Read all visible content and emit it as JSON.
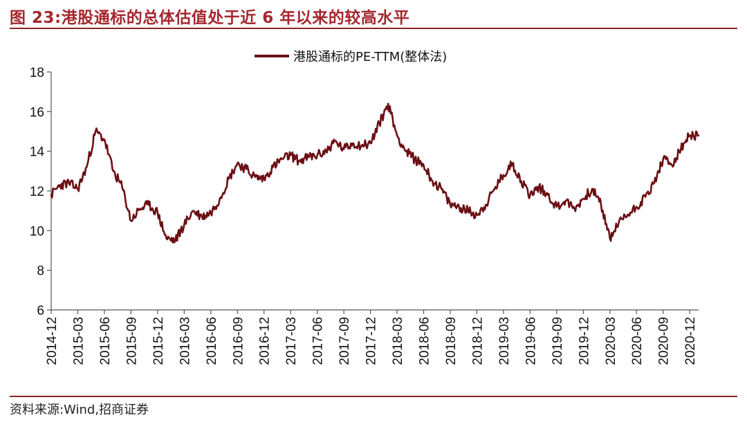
{
  "figure": {
    "title": "图 23:港股通标的总体估值处于近 6 年以来的较高水平",
    "source": "资料来源:Wind,招商证券"
  },
  "colors": {
    "accent": "#a5272e",
    "rule": "#8b2425",
    "series": "#6b0f14"
  },
  "chart_data": {
    "type": "line",
    "title": "",
    "xlabel": "",
    "ylabel": "",
    "ylim": [
      6,
      18
    ],
    "yticks": [
      6,
      8,
      10,
      12,
      14,
      16,
      18
    ],
    "grid": false,
    "legend_position": "top-center",
    "x_tick_labels": [
      "2014-12",
      "2015-03",
      "2015-06",
      "2015-09",
      "2015-12",
      "2016-03",
      "2016-06",
      "2016-09",
      "2016-12",
      "2017-03",
      "2017-06",
      "2017-09",
      "2017-12",
      "2018-03",
      "2018-06",
      "2018-09",
      "2018-12",
      "2019-03",
      "2019-06",
      "2019-09",
      "2019-12",
      "2020-03",
      "2020-06",
      "2020-09",
      "2020-12"
    ],
    "series": [
      {
        "name": "港股通标的PE-TTM(整体法)",
        "x": [
          "2014-12",
          "2015-01",
          "2015-02",
          "2015-03",
          "2015-04",
          "2015-05",
          "2015-06",
          "2015-07",
          "2015-08",
          "2015-09",
          "2015-10",
          "2015-11",
          "2015-12",
          "2016-01",
          "2016-02",
          "2016-03",
          "2016-04",
          "2016-05",
          "2016-06",
          "2016-07",
          "2016-08",
          "2016-09",
          "2016-10",
          "2016-11",
          "2016-12",
          "2017-01",
          "2017-02",
          "2017-03",
          "2017-04",
          "2017-05",
          "2017-06",
          "2017-07",
          "2017-08",
          "2017-09",
          "2017-10",
          "2017-11",
          "2017-12",
          "2018-01",
          "2018-02",
          "2018-03",
          "2018-04",
          "2018-05",
          "2018-06",
          "2018-07",
          "2018-08",
          "2018-09",
          "2018-10",
          "2018-11",
          "2018-12",
          "2019-01",
          "2019-02",
          "2019-03",
          "2019-04",
          "2019-05",
          "2019-06",
          "2019-07",
          "2019-08",
          "2019-09",
          "2019-10",
          "2019-11",
          "2019-12",
          "2020-01",
          "2020-02",
          "2020-03",
          "2020-04",
          "2020-05",
          "2020-06",
          "2020-07",
          "2020-08",
          "2020-09",
          "2020-10",
          "2020-11",
          "2020-12",
          "2021-01"
        ],
        "values": [
          11.8,
          12.3,
          12.4,
          12.1,
          13.2,
          15.0,
          14.6,
          13.0,
          12.2,
          10.5,
          11.1,
          11.3,
          10.9,
          9.6,
          9.5,
          10.3,
          11.0,
          10.7,
          10.9,
          11.6,
          12.6,
          13.4,
          13.1,
          12.7,
          12.6,
          13.2,
          13.6,
          13.8,
          13.5,
          13.7,
          13.8,
          14.0,
          14.5,
          14.1,
          14.4,
          14.3,
          14.4,
          15.4,
          16.4,
          14.8,
          14.0,
          13.6,
          13.3,
          12.5,
          12.1,
          11.3,
          11.2,
          11.0,
          10.8,
          11.3,
          12.1,
          12.8,
          13.4,
          12.5,
          11.8,
          12.2,
          11.8,
          11.2,
          11.5,
          11.1,
          11.6,
          12.1,
          11.3,
          9.6,
          10.4,
          10.8,
          11.2,
          11.7,
          12.4,
          13.6,
          13.3,
          14.1,
          14.8,
          14.8
        ]
      }
    ]
  }
}
